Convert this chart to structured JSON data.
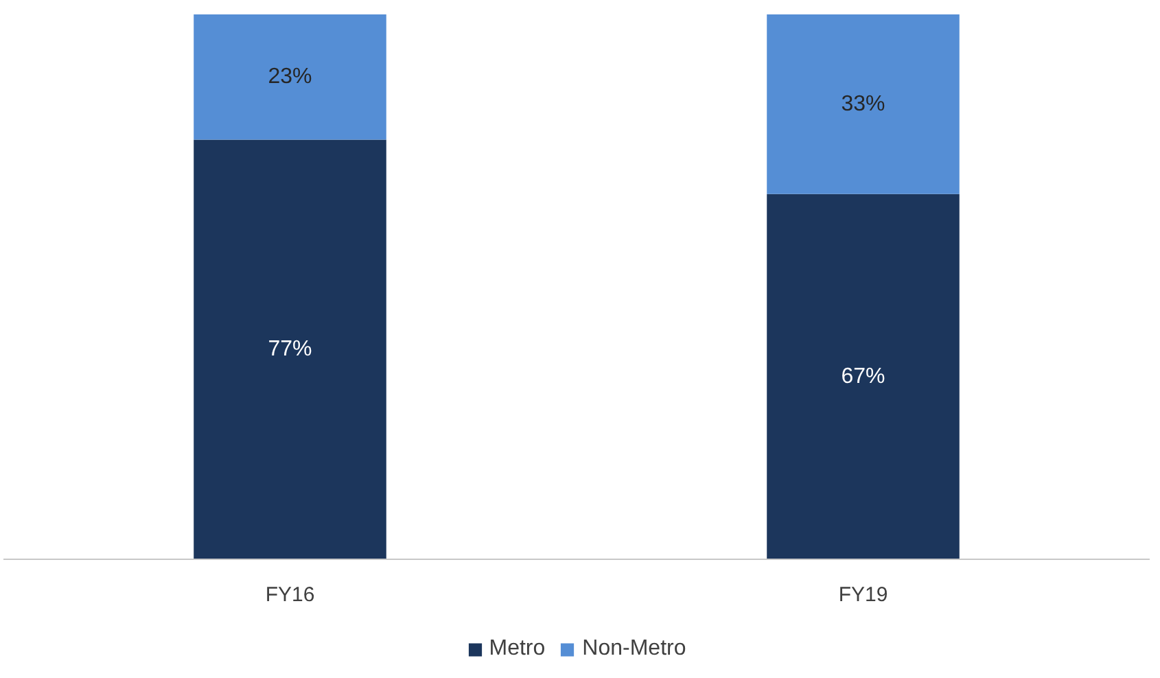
{
  "chart_data": {
    "type": "bar",
    "stacked": true,
    "categories": [
      "FY16",
      "FY19"
    ],
    "series": [
      {
        "name": "Metro",
        "color": "#1c365c",
        "values": [
          77,
          67
        ],
        "value_labels": [
          "77%",
          "67%"
        ]
      },
      {
        "name": "Non-Metro",
        "color": "#558ed5",
        "values": [
          23,
          33
        ],
        "value_labels": [
          "23%",
          "33%"
        ]
      }
    ],
    "legend": "bottom"
  }
}
